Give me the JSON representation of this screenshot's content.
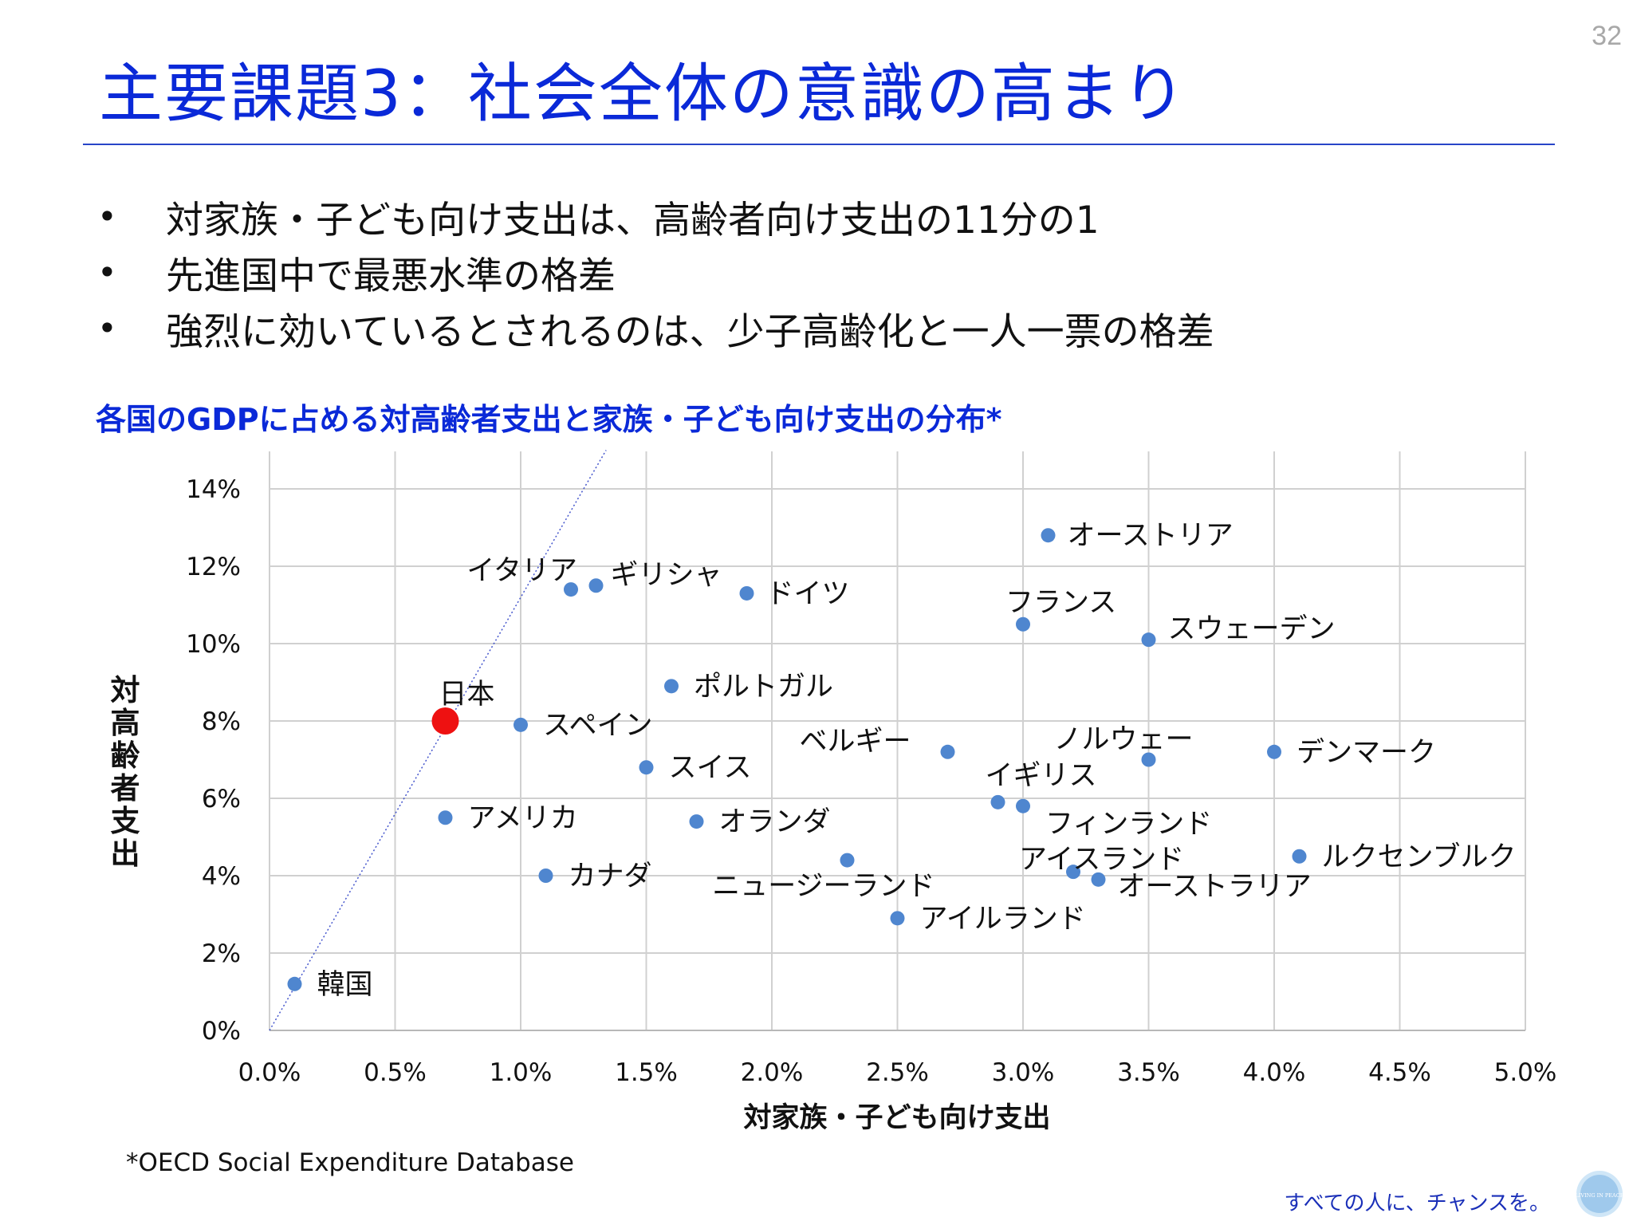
{
  "page_number": "32",
  "title": "主要課題3：社会全体の意識の高まり",
  "bullets": [
    "対家族・子ども向け支出は、高齢者向け支出の11分の1",
    "先進国中で最悪水準の格差",
    "強烈に効いているとされるのは、少子高齢化と一人一票の格差"
  ],
  "bullet_glyph": "•",
  "source_note": "*OECD Social Expenditure Database",
  "tagline": "すべての人に、チャンスを。",
  "logo_text": "LIVING IN PEACE",
  "colors": {
    "title": "#0a29d8",
    "point": "#4f86cf",
    "highlight": "#ee1111",
    "grid": "#d0d0d0",
    "trend": "#4455cc"
  },
  "chart_data": {
    "type": "scatter",
    "title": "各国のGDPに占める対高齢者支出と家族・子ども向け支出の分布*",
    "xlabel": "対家族・子ども向け支出",
    "ylabel": "対高齢者支出",
    "xlim": [
      0,
      5
    ],
    "ylim": [
      0,
      14
    ],
    "x_ticks": [
      "0.0%",
      "0.5%",
      "1.0%",
      "1.5%",
      "2.0%",
      "2.5%",
      "3.0%",
      "3.5%",
      "4.0%",
      "4.5%",
      "5.0%"
    ],
    "y_ticks": [
      "0%",
      "2%",
      "4%",
      "6%",
      "8%",
      "10%",
      "12%",
      "14%"
    ],
    "grid": true,
    "trend_line": {
      "style": "dotted",
      "from": [
        0,
        0
      ],
      "to": [
        1.34,
        15
      ]
    },
    "points": [
      {
        "name": "日本",
        "x": 0.7,
        "y": 8.0,
        "highlight": true
      },
      {
        "name": "韓国",
        "x": 0.1,
        "y": 1.2
      },
      {
        "name": "アメリカ",
        "x": 0.7,
        "y": 5.5
      },
      {
        "name": "スペイン",
        "x": 1.0,
        "y": 7.9
      },
      {
        "name": "カナダ",
        "x": 1.1,
        "y": 4.0
      },
      {
        "name": "イタリア",
        "x": 1.2,
        "y": 11.4
      },
      {
        "name": "ギリシャ",
        "x": 1.3,
        "y": 11.5
      },
      {
        "name": "スイス",
        "x": 1.5,
        "y": 6.8
      },
      {
        "name": "ポルトガル",
        "x": 1.6,
        "y": 8.9
      },
      {
        "name": "オランダ",
        "x": 1.7,
        "y": 5.4
      },
      {
        "name": "ドイツ",
        "x": 1.9,
        "y": 11.3
      },
      {
        "name": "ニュージーランド",
        "x": 2.3,
        "y": 4.4
      },
      {
        "name": "アイルランド",
        "x": 2.5,
        "y": 2.9
      },
      {
        "name": "ベルギー",
        "x": 2.7,
        "y": 7.2
      },
      {
        "name": "イギリス",
        "x": 2.9,
        "y": 5.9
      },
      {
        "name": "フィンランド",
        "x": 3.0,
        "y": 5.8
      },
      {
        "name": "フランス",
        "x": 3.0,
        "y": 10.5
      },
      {
        "name": "オーストリア",
        "x": 3.1,
        "y": 12.8
      },
      {
        "name": "アイスランド",
        "x": 3.2,
        "y": 4.1
      },
      {
        "name": "オーストラリア",
        "x": 3.3,
        "y": 3.9
      },
      {
        "name": "スウェーデン",
        "x": 3.5,
        "y": 10.1
      },
      {
        "name": "ノルウェー",
        "x": 3.5,
        "y": 7.0
      },
      {
        "name": "デンマーク",
        "x": 4.0,
        "y": 7.2
      },
      {
        "name": "ルクセンブルク",
        "x": 4.1,
        "y": 4.5
      }
    ]
  }
}
